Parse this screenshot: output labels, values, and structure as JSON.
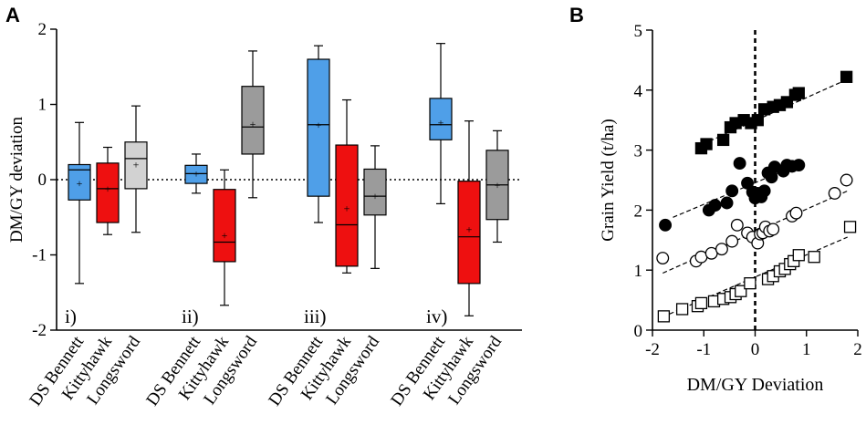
{
  "panel_labels": {
    "a": "A",
    "b": "B"
  },
  "chart_data": [
    {
      "type": "box",
      "title": "",
      "xlabel": "",
      "ylabel": "DM/GY deviation",
      "ylim": [
        -2,
        2
      ],
      "yticks": [
        -2,
        -1,
        0,
        1,
        2
      ],
      "reference_line": 0,
      "category_labels": [
        "DS Bennett",
        "Kittyhawk",
        "Longsword"
      ],
      "groups": [
        {
          "label": "i)",
          "boxes": [
            {
              "category": "DS Bennett",
              "color": "#4f9fe8",
              "min": -1.38,
              "q1": -0.27,
              "median": 0.13,
              "q3": 0.2,
              "max": 0.76,
              "mean": -0.05
            },
            {
              "category": "Kittyhawk",
              "color": "#ee1010",
              "min": -0.73,
              "q1": -0.57,
              "median": -0.12,
              "q3": 0.22,
              "max": 0.43,
              "mean": -0.12
            },
            {
              "category": "Longsword",
              "color": "#d2d2d2",
              "min": -0.7,
              "q1": -0.12,
              "median": 0.28,
              "q3": 0.5,
              "max": 0.98,
              "mean": 0.2
            }
          ]
        },
        {
          "label": "ii)",
          "boxes": [
            {
              "category": "DS Bennett",
              "color": "#4f9fe8",
              "min": -0.18,
              "q1": -0.05,
              "median": 0.08,
              "q3": 0.19,
              "max": 0.34,
              "mean": 0.08
            },
            {
              "category": "Kittyhawk",
              "color": "#ee1010",
              "min": -1.67,
              "q1": -1.09,
              "median": -0.83,
              "q3": -0.13,
              "max": 0.13,
              "mean": -0.74
            },
            {
              "category": "Longsword",
              "color": "#9b9b9b",
              "min": -0.24,
              "q1": 0.34,
              "median": 0.7,
              "q3": 1.24,
              "max": 1.71,
              "mean": 0.74
            }
          ]
        },
        {
          "label": "iii)",
          "boxes": [
            {
              "category": "DS Bennett",
              "color": "#4f9fe8",
              "min": -0.57,
              "q1": -0.22,
              "median": 0.73,
              "q3": 1.6,
              "max": 1.78,
              "mean": 0.73
            },
            {
              "category": "Kittyhawk",
              "color": "#ee1010",
              "min": -1.24,
              "q1": -1.15,
              "median": -0.6,
              "q3": 0.46,
              "max": 1.06,
              "mean": -0.38
            },
            {
              "category": "Longsword",
              "color": "#9b9b9b",
              "min": -1.18,
              "q1": -0.47,
              "median": -0.22,
              "q3": 0.14,
              "max": 0.45,
              "mean": -0.22
            }
          ]
        },
        {
          "label": "iv)",
          "boxes": [
            {
              "category": "DS Bennett",
              "color": "#4f9fe8",
              "min": -0.32,
              "q1": 0.53,
              "median": 0.73,
              "q3": 1.08,
              "max": 1.81,
              "mean": 0.76
            },
            {
              "category": "Kittyhawk",
              "color": "#ee1010",
              "min": -1.81,
              "q1": -1.38,
              "median": -0.76,
              "q3": -0.02,
              "max": 0.78,
              "mean": -0.66
            },
            {
              "category": "Longsword",
              "color": "#9b9b9b",
              "min": -0.83,
              "q1": -0.53,
              "median": -0.07,
              "q3": 0.39,
              "max": 0.65,
              "mean": -0.07
            }
          ]
        }
      ]
    },
    {
      "type": "scatter",
      "title": "",
      "xlabel": "DM/GY Deviation",
      "ylabel": "Grain Yield (t/ha)",
      "xlim": [
        -2,
        2
      ],
      "ylim": [
        0,
        5
      ],
      "xticks": [
        -2,
        -1,
        0,
        1,
        2
      ],
      "yticks": [
        0,
        1,
        2,
        3,
        4,
        5
      ],
      "reference_line": 0,
      "series": [
        {
          "name": "filled squares",
          "marker": "square",
          "fill": "#000000",
          "x": [
            -1.05,
            -0.95,
            -0.62,
            -0.48,
            -0.38,
            -0.22,
            -0.08,
            0.05,
            0.18,
            0.35,
            0.48,
            0.62,
            0.78,
            0.85,
            1.78
          ],
          "y": [
            3.03,
            3.1,
            3.17,
            3.38,
            3.45,
            3.5,
            3.45,
            3.5,
            3.68,
            3.72,
            3.75,
            3.8,
            3.92,
            3.95,
            4.22
          ],
          "fit": {
            "x": [
              -1.15,
              1.85
            ],
            "y": [
              3.05,
              4.2
            ]
          }
        },
        {
          "name": "filled circles",
          "marker": "circle",
          "fill": "#000000",
          "x": [
            -1.75,
            -0.9,
            -0.78,
            -0.55,
            -0.45,
            -0.3,
            -0.15,
            -0.05,
            0.0,
            0.05,
            0.12,
            0.18,
            0.25,
            0.32,
            0.38,
            0.55,
            0.62,
            0.72,
            0.85
          ],
          "y": [
            1.75,
            2.0,
            2.08,
            2.12,
            2.32,
            2.78,
            2.45,
            2.3,
            2.2,
            2.28,
            2.22,
            2.32,
            2.62,
            2.55,
            2.72,
            2.65,
            2.75,
            2.73,
            2.75
          ],
          "fit": {
            "x": [
              -1.6,
              0.9
            ],
            "y": [
              1.88,
              2.78
            ]
          }
        },
        {
          "name": "open circles",
          "marker": "circle",
          "fill": "none",
          "x": [
            -1.8,
            -1.15,
            -1.05,
            -0.85,
            -0.65,
            -0.45,
            -0.35,
            -0.15,
            -0.05,
            0.05,
            0.1,
            0.15,
            0.2,
            0.28,
            0.35,
            0.72,
            0.8,
            1.55,
            1.78
          ],
          "y": [
            1.2,
            1.15,
            1.22,
            1.28,
            1.35,
            1.48,
            1.75,
            1.62,
            1.55,
            1.45,
            1.6,
            1.62,
            1.72,
            1.65,
            1.68,
            1.9,
            1.95,
            2.28,
            2.5
          ],
          "fit": {
            "x": [
              -1.8,
              1.8
            ],
            "y": [
              0.95,
              2.32
            ]
          }
        },
        {
          "name": "open squares",
          "marker": "square",
          "fill": "none",
          "x": [
            -1.78,
            -1.42,
            -1.12,
            -1.05,
            -0.8,
            -0.62,
            -0.48,
            -0.38,
            -0.28,
            -0.1,
            0.25,
            0.35,
            0.48,
            0.58,
            0.68,
            0.75,
            0.85,
            1.15,
            1.85
          ],
          "y": [
            0.23,
            0.35,
            0.4,
            0.45,
            0.48,
            0.52,
            0.55,
            0.6,
            0.65,
            0.78,
            0.85,
            0.9,
            0.98,
            1.02,
            1.1,
            1.15,
            1.25,
            1.22,
            1.72
          ],
          "fit": {
            "x": [
              -1.8,
              1.8
            ],
            "y": [
              0.22,
              1.55
            ]
          }
        }
      ]
    }
  ]
}
